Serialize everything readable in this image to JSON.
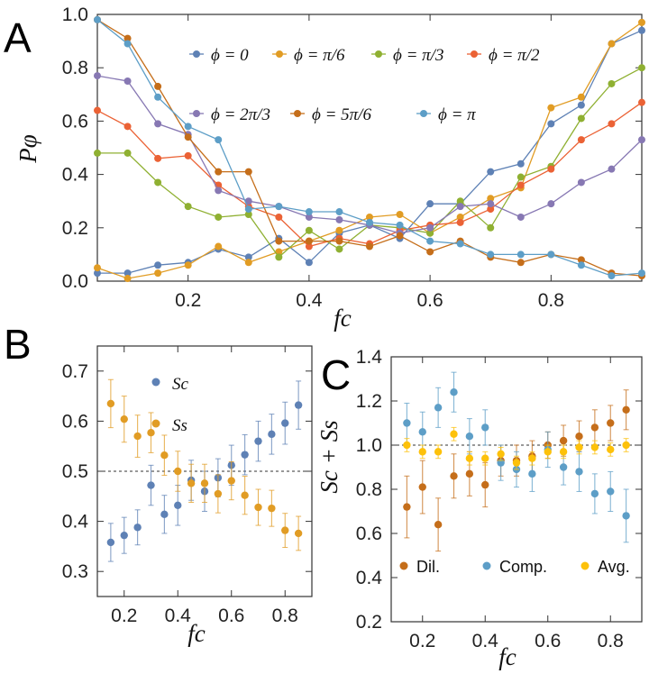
{
  "chart_data": [
    {
      "panel": "A",
      "type": "line",
      "xlabel": "fc",
      "ylabel": "Pφ",
      "xlim": [
        0.05,
        0.95
      ],
      "ylim": [
        0.0,
        1.0
      ],
      "xticks": [
        "0.2",
        "0.4",
        "0.6",
        "0.8"
      ],
      "yticks": [
        "0.0",
        "0.2",
        "0.4",
        "0.6",
        "0.8",
        "1.0"
      ],
      "x": [
        0.05,
        0.1,
        0.15,
        0.2,
        0.25,
        0.3,
        0.35,
        0.4,
        0.45,
        0.5,
        0.55,
        0.6,
        0.65,
        0.7,
        0.75,
        0.8,
        0.85,
        0.9,
        0.95
      ],
      "series": [
        {
          "name": "ϕ = 0",
          "color": "#5e81b5",
          "values": [
            0.03,
            0.03,
            0.06,
            0.07,
            0.12,
            0.09,
            0.16,
            0.07,
            0.18,
            0.21,
            0.16,
            0.29,
            0.29,
            0.41,
            0.44,
            0.59,
            0.66,
            0.89,
            0.94
          ]
        },
        {
          "name": "ϕ = π/6",
          "color": "#e19c24",
          "values": [
            0.05,
            0.01,
            0.03,
            0.06,
            0.13,
            0.07,
            0.11,
            0.15,
            0.19,
            0.24,
            0.25,
            0.18,
            0.24,
            0.31,
            0.35,
            0.65,
            0.69,
            0.89,
            0.97
          ]
        },
        {
          "name": "ϕ = π/3",
          "color": "#8fb032",
          "values": [
            0.48,
            0.48,
            0.37,
            0.28,
            0.24,
            0.25,
            0.09,
            0.19,
            0.12,
            0.21,
            0.2,
            0.18,
            0.3,
            0.2,
            0.39,
            0.43,
            0.61,
            0.74,
            0.8
          ]
        },
        {
          "name": "ϕ = π/2",
          "color": "#eb6235",
          "values": [
            0.64,
            0.58,
            0.46,
            0.47,
            0.36,
            0.28,
            0.24,
            0.13,
            0.16,
            0.14,
            0.19,
            0.21,
            0.22,
            0.27,
            0.36,
            0.42,
            0.53,
            0.59,
            0.67
          ]
        },
        {
          "name": "ϕ = 2π/3",
          "color": "#8778b3",
          "values": [
            0.77,
            0.75,
            0.59,
            0.55,
            0.34,
            0.3,
            0.28,
            0.24,
            0.23,
            0.21,
            0.18,
            0.2,
            0.28,
            0.29,
            0.24,
            0.29,
            0.37,
            0.42,
            0.53
          ]
        },
        {
          "name": "ϕ = 5π/6",
          "color": "#c56e1a",
          "values": [
            0.98,
            0.91,
            0.73,
            0.54,
            0.41,
            0.41,
            0.15,
            0.15,
            0.15,
            0.13,
            0.17,
            0.11,
            0.15,
            0.09,
            0.07,
            0.1,
            0.08,
            0.03,
            0.02
          ]
        },
        {
          "name": "ϕ = π",
          "color": "#5d9ec7",
          "values": [
            0.98,
            0.89,
            0.69,
            0.58,
            0.53,
            0.27,
            0.28,
            0.26,
            0.26,
            0.22,
            0.21,
            0.15,
            0.14,
            0.1,
            0.1,
            0.1,
            0.06,
            0.02,
            0.03
          ]
        }
      ]
    },
    {
      "panel": "B",
      "type": "scatter",
      "xlabel": "fc",
      "xlim": [
        0.1,
        0.9
      ],
      "ylim": [
        0.25,
        0.75
      ],
      "xticks": [
        "0.2",
        "0.4",
        "0.6",
        "0.8"
      ],
      "yticks": [
        "0.3",
        "0.4",
        "0.5",
        "0.6",
        "0.7"
      ],
      "reference_line": 0.5,
      "x": [
        0.15,
        0.2,
        0.25,
        0.3,
        0.35,
        0.4,
        0.45,
        0.5,
        0.55,
        0.6,
        0.65,
        0.7,
        0.75,
        0.8,
        0.85
      ],
      "series": [
        {
          "name": "Sc",
          "color": "#5e81b5",
          "values": [
            0.358,
            0.372,
            0.388,
            0.472,
            0.414,
            0.432,
            0.482,
            0.46,
            0.487,
            0.512,
            0.533,
            0.56,
            0.574,
            0.596,
            0.632
          ],
          "errors": [
            0.038,
            0.036,
            0.035,
            0.04,
            0.038,
            0.04,
            0.04,
            0.04,
            0.038,
            0.04,
            0.04,
            0.04,
            0.04,
            0.042,
            0.048
          ]
        },
        {
          "name": "Ss",
          "color": "#e19c24",
          "values": [
            0.635,
            0.604,
            0.57,
            0.577,
            0.532,
            0.5,
            0.476,
            0.476,
            0.455,
            0.481,
            0.452,
            0.428,
            0.426,
            0.382,
            0.376
          ],
          "errors": [
            0.048,
            0.046,
            0.042,
            0.04,
            0.04,
            0.04,
            0.038,
            0.038,
            0.038,
            0.038,
            0.038,
            0.036,
            0.036,
            0.034,
            0.034
          ]
        }
      ]
    },
    {
      "panel": "C",
      "type": "scatter",
      "xlabel": "fc",
      "ylabel": "Sc + Ss",
      "xlim": [
        0.1,
        0.9
      ],
      "ylim": [
        0.2,
        1.4
      ],
      "xticks": [
        "0.2",
        "0.4",
        "0.6",
        "0.8"
      ],
      "yticks": [
        "0.2",
        "0.4",
        "0.6",
        "0.8",
        "1.0",
        "1.2",
        "1.4"
      ],
      "reference_line": 1.0,
      "x": [
        0.15,
        0.2,
        0.25,
        0.3,
        0.35,
        0.4,
        0.45,
        0.5,
        0.55,
        0.6,
        0.65,
        0.7,
        0.75,
        0.8,
        0.85
      ],
      "series": [
        {
          "name": "Dil.",
          "color": "#c56e1a",
          "values": [
            0.72,
            0.81,
            0.64,
            0.86,
            0.87,
            0.82,
            0.93,
            0.93,
            0.95,
            1.0,
            1.02,
            1.04,
            1.08,
            1.1,
            1.16
          ],
          "errors": [
            0.14,
            0.12,
            0.12,
            0.1,
            0.1,
            0.1,
            0.07,
            0.07,
            0.07,
            0.06,
            0.07,
            0.07,
            0.08,
            0.08,
            0.09
          ]
        },
        {
          "name": "Comp.",
          "color": "#5d9ec7",
          "values": [
            1.1,
            1.06,
            1.17,
            1.24,
            1.04,
            1.08,
            0.92,
            0.89,
            0.87,
            0.98,
            0.9,
            0.88,
            0.78,
            0.79,
            0.68
          ],
          "errors": [
            0.09,
            0.09,
            0.09,
            0.09,
            0.08,
            0.08,
            0.08,
            0.08,
            0.08,
            0.08,
            0.08,
            0.09,
            0.09,
            0.09,
            0.12
          ]
        },
        {
          "name": "Avg.",
          "color": "#fdc10a",
          "values": [
            1.0,
            0.97,
            0.97,
            1.05,
            0.94,
            0.94,
            0.96,
            0.92,
            0.94,
            0.97,
            0.97,
            0.99,
            0.99,
            0.98,
            1.0
          ],
          "errors": [
            0.03,
            0.03,
            0.03,
            0.03,
            0.03,
            0.03,
            0.03,
            0.03,
            0.03,
            0.03,
            0.03,
            0.03,
            0.03,
            0.03,
            0.03
          ]
        }
      ]
    }
  ],
  "labels": {
    "panelA": "A",
    "panelB": "B",
    "panelC": "C"
  }
}
